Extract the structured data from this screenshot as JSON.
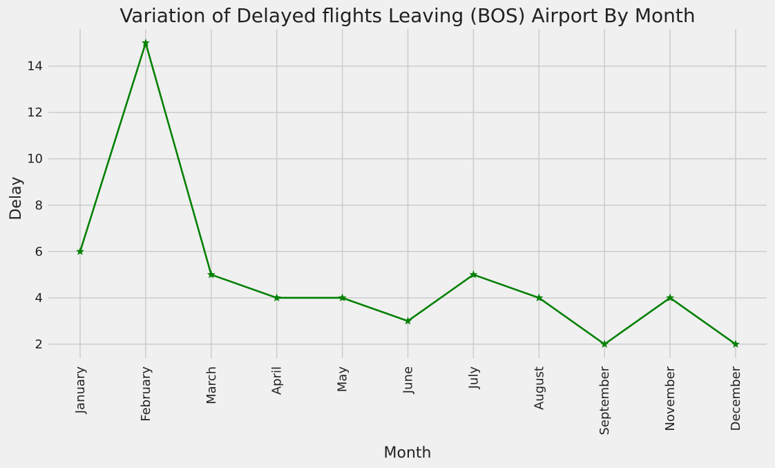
{
  "chart_data": {
    "type": "line",
    "title": "Variation of Delayed flights Leaving (BOS) Airport By Month",
    "xlabel": "Month",
    "ylabel": "Delay",
    "categories": [
      "January",
      "February",
      "March",
      "April",
      "May",
      "June",
      "July",
      "August",
      "September",
      "November",
      "December"
    ],
    "series": [
      {
        "values": [
          6,
          15,
          5,
          4,
          4,
          3,
          5,
          4,
          2,
          4,
          2
        ]
      }
    ],
    "ylim": [
      1.4,
      15.6
    ],
    "yticks": [
      2,
      4,
      6,
      8,
      10,
      12,
      14
    ],
    "grid": true,
    "legend": "none",
    "marker": "star",
    "line_color": "#008000",
    "background_color": "#f0f0f0",
    "grid_color": "#cbcbcb"
  }
}
